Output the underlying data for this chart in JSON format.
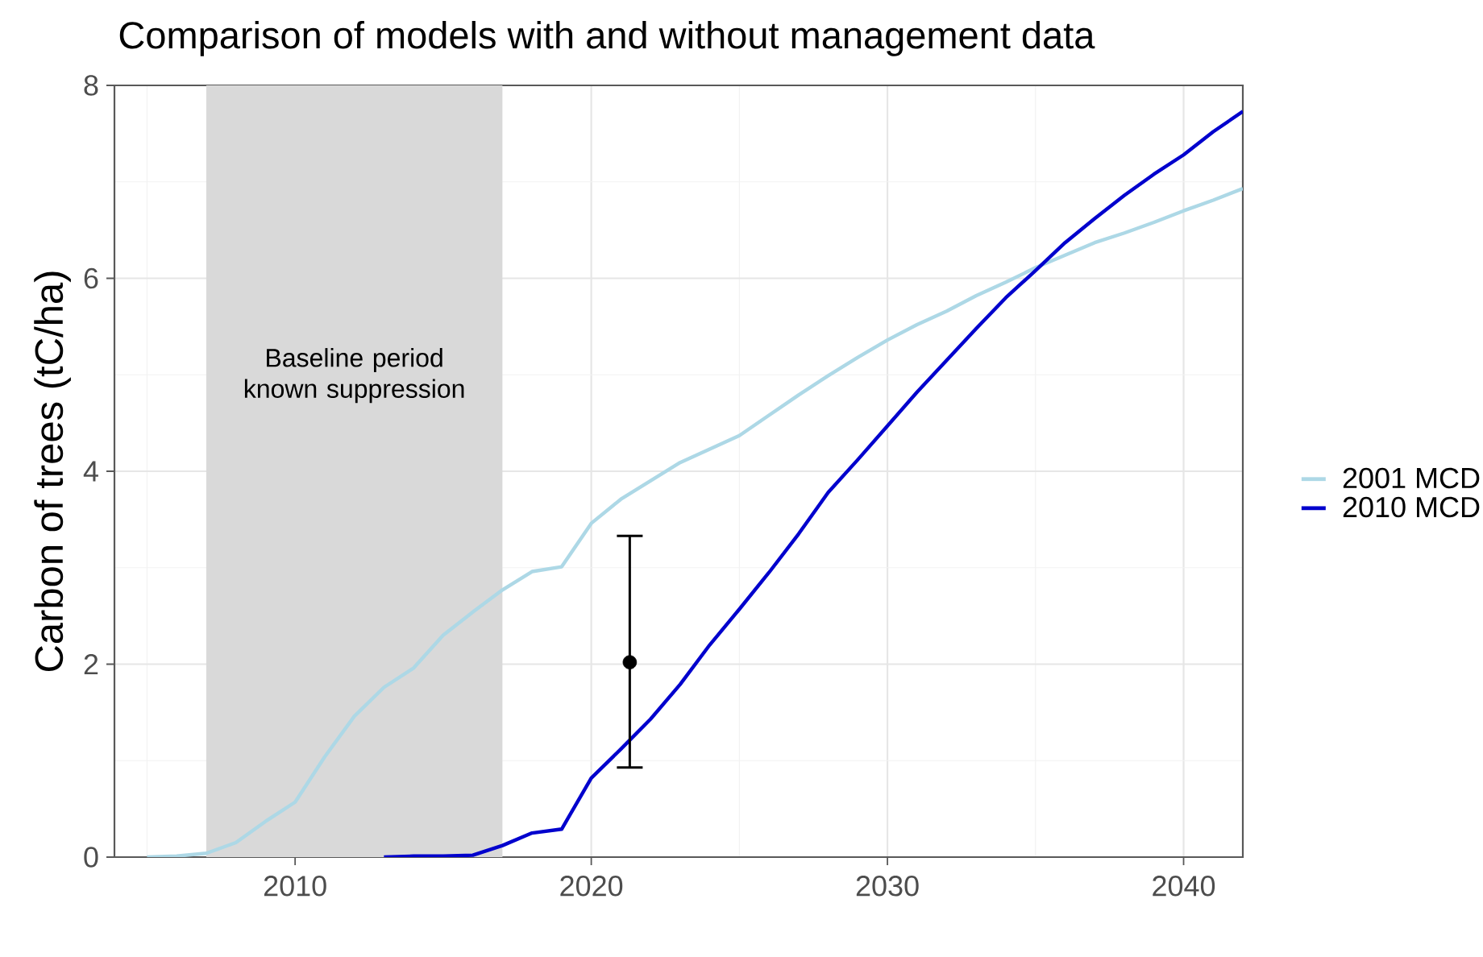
{
  "chart_data": {
    "type": "line",
    "title": "Comparison of models with and without management data",
    "ylabel": "Carbon of trees (tC/ha)",
    "xlim": [
      2003.9,
      2042
    ],
    "xticks": [
      2010,
      2020,
      2030,
      2040
    ],
    "ylim": [
      0,
      8
    ],
    "yticks": [
      0,
      2,
      4,
      6,
      8
    ],
    "grid": true,
    "legend": "right",
    "series": [
      {
        "name": "2001 MCD",
        "color": "#add8e6",
        "x": [
          2005,
          2006,
          2007,
          2008,
          2009,
          2010,
          2011,
          2012,
          2013,
          2014,
          2015,
          2016,
          2017,
          2018,
          2019,
          2020,
          2021,
          2022,
          2023,
          2024,
          2025,
          2026,
          2027,
          2028,
          2029,
          2030,
          2031,
          2032,
          2033,
          2034,
          2035,
          2036,
          2037,
          2038,
          2039,
          2040,
          2041,
          2042
        ],
        "values": [
          0,
          0.01,
          0.04,
          0.15,
          0.37,
          0.57,
          1.04,
          1.46,
          1.76,
          1.96,
          2.3,
          2.54,
          2.77,
          2.96,
          3.01,
          3.46,
          3.71,
          3.9,
          4.09,
          4.23,
          4.37,
          4.58,
          4.79,
          4.99,
          5.18,
          5.36,
          5.52,
          5.66,
          5.82,
          5.96,
          6.11,
          6.24,
          6.37,
          6.47,
          6.58,
          6.7,
          6.81,
          6.93
        ]
      },
      {
        "name": "2010 MCD",
        "color": "#0000cd",
        "x": [
          2013,
          2014,
          2015,
          2016,
          2017,
          2018,
          2019,
          2020,
          2021,
          2022,
          2023,
          2024,
          2025,
          2026,
          2027,
          2028,
          2029,
          2030,
          2031,
          2032,
          2033,
          2034,
          2035,
          2036,
          2037,
          2038,
          2039,
          2040,
          2041,
          2042
        ],
        "values": [
          0,
          0.01,
          0.01,
          0.02,
          0.12,
          0.25,
          0.29,
          0.82,
          1.12,
          1.43,
          1.79,
          2.2,
          2.57,
          2.95,
          3.35,
          3.78,
          4.12,
          4.47,
          4.82,
          5.15,
          5.48,
          5.8,
          6.08,
          6.37,
          6.62,
          6.86,
          7.08,
          7.28,
          7.52,
          7.73
        ]
      },
      {
        "type": "scatter",
        "color": "#000000",
        "marker": "circle",
        "x": [
          2021.3
        ],
        "values": [
          2.02
        ],
        "errors": [
          [
            0.93,
            3.33
          ]
        ]
      }
    ],
    "bands": [
      {
        "axis": "x",
        "from": 2007,
        "to": 2017,
        "label": "Baseline period known suppression",
        "color": "#d9d9d9"
      }
    ]
  }
}
